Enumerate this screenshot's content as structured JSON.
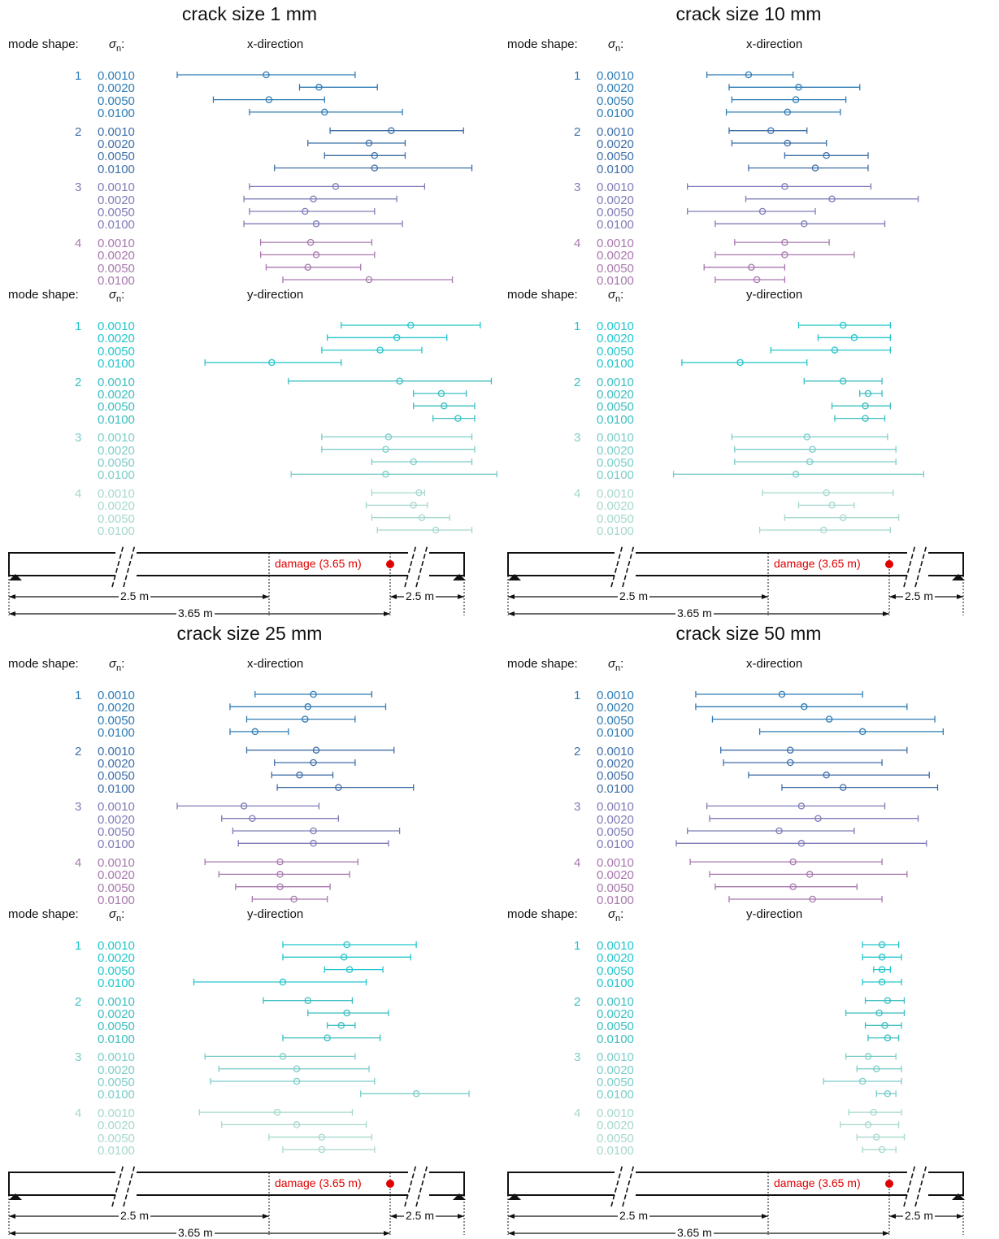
{
  "labels": {
    "mode_shape": "mode shape:",
    "sigma": "σ",
    "sigma_sub": "n",
    "sigma_suffix": ":",
    "x_direction": "x-direction",
    "y_direction": "y-direction",
    "damage": "damage (3.65 m)",
    "dim_2_5": "2.5 m",
    "dim_3_65": "3.65 m"
  },
  "modes": [
    "1",
    "2",
    "3",
    "4"
  ],
  "sigma_levels": [
    "0.0010",
    "0.0020",
    "0.0050",
    "0.0100"
  ],
  "colors": {
    "x": [
      "#2e7cb5",
      "#3f6fa8",
      "#7e7cb7",
      "#a878ae"
    ],
    "y": [
      "#22c6cc",
      "#3cbec0",
      "#7ccdc9",
      "#a6d8ce"
    ],
    "damage": "#e00000"
  },
  "chart_data": [
    {
      "type": "errorbar",
      "title": "crack size 1 mm",
      "x_direction": {
        "mean": [
          [
            0.32,
            0.51,
            0.33,
            0.53
          ],
          [
            0.77,
            0.69,
            0.71,
            0.71
          ],
          [
            0.57,
            0.49,
            0.46,
            0.5
          ],
          [
            0.48,
            0.5,
            0.47,
            0.69
          ]
        ],
        "lower": [
          [
            0.0,
            0.44,
            0.13,
            0.26
          ],
          [
            0.55,
            0.47,
            0.53,
            0.35
          ],
          [
            0.26,
            0.24,
            0.26,
            0.24
          ],
          [
            0.3,
            0.3,
            0.32,
            0.38
          ]
        ],
        "upper": [
          [
            0.64,
            0.72,
            0.53,
            0.81
          ],
          [
            1.03,
            0.82,
            0.82,
            1.06
          ],
          [
            0.89,
            0.79,
            0.71,
            0.81
          ],
          [
            0.7,
            0.71,
            0.66,
            0.99
          ]
        ]
      },
      "y_direction": {
        "mean": [
          [
            0.84,
            0.79,
            0.73,
            0.34
          ],
          [
            0.8,
            0.95,
            0.96,
            1.01
          ],
          [
            0.76,
            0.75,
            0.85,
            0.75
          ],
          [
            0.87,
            0.85,
            0.88,
            0.93
          ]
        ],
        "lower": [
          [
            0.59,
            0.54,
            0.52,
            0.1
          ],
          [
            0.4,
            0.85,
            0.85,
            0.92
          ],
          [
            0.52,
            0.52,
            0.7,
            0.41
          ],
          [
            0.7,
            0.68,
            0.7,
            0.72
          ]
        ],
        "upper": [
          [
            1.09,
            0.97,
            0.88,
            0.59
          ],
          [
            1.13,
            1.04,
            1.07,
            1.07
          ],
          [
            1.06,
            1.07,
            1.06,
            1.15
          ],
          [
            0.89,
            0.9,
            0.98,
            1.06
          ]
        ]
      }
    },
    {
      "type": "errorbar",
      "title": "crack size 10 mm",
      "x_direction": {
        "mean": [
          [
            0.26,
            0.44,
            0.43,
            0.4
          ],
          [
            0.34,
            0.4,
            0.54,
            0.5
          ],
          [
            0.39,
            0.56,
            0.31,
            0.46
          ],
          [
            0.39,
            0.39,
            0.27,
            0.29
          ]
        ],
        "lower": [
          [
            0.11,
            0.19,
            0.2,
            0.18
          ],
          [
            0.19,
            0.2,
            0.39,
            0.26
          ],
          [
            0.04,
            0.25,
            0.04,
            0.14
          ],
          [
            0.21,
            0.14,
            0.1,
            0.14
          ]
        ],
        "upper": [
          [
            0.42,
            0.66,
            0.61,
            0.59
          ],
          [
            0.47,
            0.54,
            0.69,
            0.69
          ],
          [
            0.7,
            0.87,
            0.5,
            0.75
          ],
          [
            0.55,
            0.64,
            0.39,
            0.39
          ]
        ]
      },
      "y_direction": {
        "mean": [
          [
            0.6,
            0.64,
            0.57,
            0.23
          ],
          [
            0.6,
            0.69,
            0.68,
            0.68
          ],
          [
            0.47,
            0.49,
            0.48,
            0.43
          ],
          [
            0.54,
            0.56,
            0.6,
            0.53
          ]
        ],
        "lower": [
          [
            0.44,
            0.51,
            0.34,
            0.02
          ],
          [
            0.46,
            0.66,
            0.56,
            0.57
          ],
          [
            0.2,
            0.21,
            0.21,
            -0.01
          ],
          [
            0.31,
            0.44,
            0.39,
            0.3
          ]
        ],
        "upper": [
          [
            0.77,
            0.77,
            0.77,
            0.47
          ],
          [
            0.74,
            0.74,
            0.77,
            0.75
          ],
          [
            0.76,
            0.79,
            0.79,
            0.89
          ],
          [
            0.78,
            0.64,
            0.8,
            0.77
          ]
        ]
      }
    },
    {
      "type": "errorbar",
      "title": "crack size 25 mm",
      "x_direction": {
        "mean": [
          [
            0.49,
            0.47,
            0.46,
            0.28
          ],
          [
            0.5,
            0.49,
            0.44,
            0.58
          ],
          [
            0.24,
            0.27,
            0.49,
            0.49
          ],
          [
            0.37,
            0.37,
            0.37,
            0.42
          ]
        ],
        "lower": [
          [
            0.28,
            0.19,
            0.25,
            0.19
          ],
          [
            0.25,
            0.35,
            0.34,
            0.36
          ],
          [
            0.0,
            0.16,
            0.2,
            0.22
          ],
          [
            0.1,
            0.15,
            0.21,
            0.27
          ]
        ],
        "upper": [
          [
            0.7,
            0.75,
            0.64,
            0.4
          ],
          [
            0.78,
            0.64,
            0.56,
            0.85
          ],
          [
            0.51,
            0.58,
            0.8,
            0.76
          ],
          [
            0.65,
            0.62,
            0.55,
            0.54
          ]
        ]
      },
      "y_direction": {
        "mean": [
          [
            0.61,
            0.6,
            0.62,
            0.38
          ],
          [
            0.47,
            0.61,
            0.59,
            0.54
          ],
          [
            0.38,
            0.43,
            0.43,
            0.86
          ],
          [
            0.36,
            0.43,
            0.52,
            0.52
          ]
        ],
        "lower": [
          [
            0.38,
            0.38,
            0.53,
            0.06
          ],
          [
            0.31,
            0.47,
            0.54,
            0.38
          ],
          [
            0.1,
            0.15,
            0.12,
            0.66
          ],
          [
            0.08,
            0.16,
            0.33,
            0.38
          ]
        ],
        "upper": [
          [
            0.86,
            0.84,
            0.74,
            0.68
          ],
          [
            0.63,
            0.76,
            0.64,
            0.73
          ],
          [
            0.64,
            0.69,
            0.71,
            1.05
          ],
          [
            0.63,
            0.68,
            0.7,
            0.71
          ]
        ]
      }
    },
    {
      "type": "errorbar",
      "title": "crack size 50 mm",
      "x_direction": {
        "mean": [
          [
            0.38,
            0.46,
            0.55,
            0.67
          ],
          [
            0.41,
            0.41,
            0.54,
            0.6
          ],
          [
            0.45,
            0.51,
            0.37,
            0.45
          ],
          [
            0.42,
            0.48,
            0.42,
            0.49
          ]
        ],
        "lower": [
          [
            0.07,
            0.07,
            0.13,
            0.3
          ],
          [
            0.16,
            0.17,
            0.26,
            0.38
          ],
          [
            0.11,
            0.12,
            0.04,
            0.0
          ],
          [
            0.05,
            0.12,
            0.14,
            0.19
          ]
        ],
        "upper": [
          [
            0.67,
            0.83,
            0.93,
            0.96
          ],
          [
            0.83,
            0.74,
            0.91,
            0.94
          ],
          [
            0.75,
            0.87,
            0.64,
            0.9
          ],
          [
            0.74,
            0.83,
            0.65,
            0.74
          ]
        ]
      },
      "y_direction": {
        "mean": [
          [
            0.74,
            0.74,
            0.74,
            0.74
          ],
          [
            0.76,
            0.73,
            0.75,
            0.76
          ],
          [
            0.69,
            0.72,
            0.67,
            0.76
          ],
          [
            0.71,
            0.69,
            0.72,
            0.74
          ]
        ],
        "lower": [
          [
            0.67,
            0.67,
            0.71,
            0.67
          ],
          [
            0.68,
            0.61,
            0.68,
            0.69
          ],
          [
            0.61,
            0.65,
            0.53,
            0.72
          ],
          [
            0.62,
            0.59,
            0.65,
            0.67
          ]
        ],
        "upper": [
          [
            0.8,
            0.81,
            0.77,
            0.81
          ],
          [
            0.82,
            0.82,
            0.81,
            0.8
          ],
          [
            0.79,
            0.81,
            0.81,
            0.79
          ],
          [
            0.81,
            0.8,
            0.82,
            0.79
          ]
        ]
      }
    }
  ]
}
